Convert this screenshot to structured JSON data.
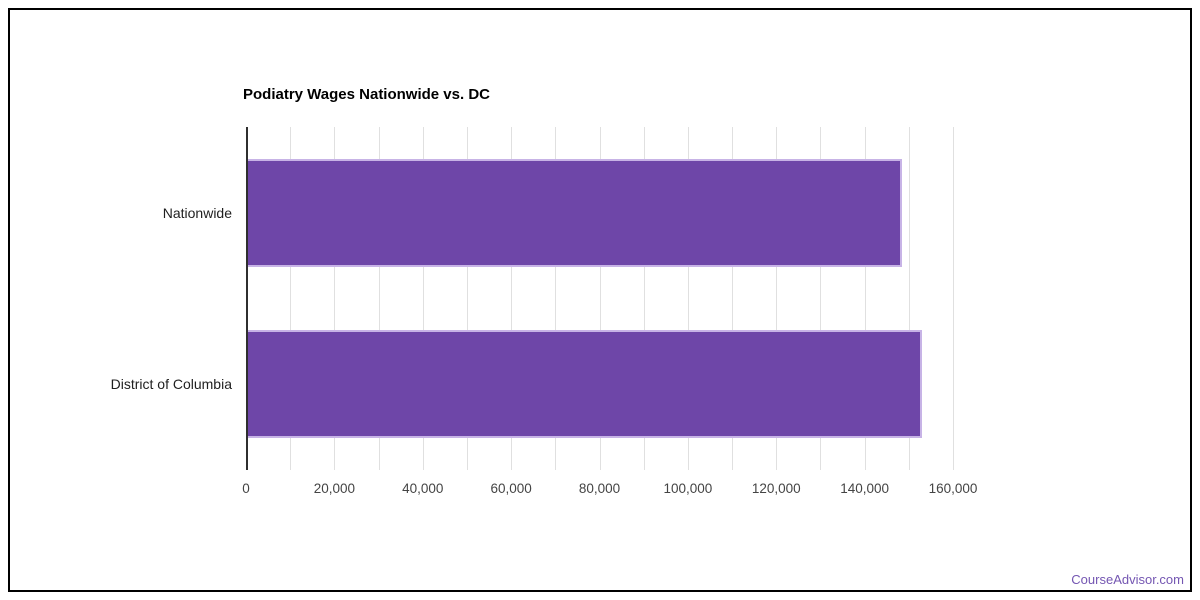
{
  "page": {
    "background_color": "#ffffff",
    "frame_border_color": "#000000"
  },
  "watermark": {
    "text": "CourseAdvisor.com",
    "color": "#7456b2"
  },
  "chart_data": {
    "type": "bar",
    "orientation": "horizontal",
    "title": "Podiatry Wages Nationwide vs. DC",
    "categories": [
      "Nationwide",
      "District of Columbia"
    ],
    "values": [
      148000,
      152500
    ],
    "xlabel": "",
    "ylabel": "",
    "xlim": [
      0,
      167000
    ],
    "x_ticks": [
      0,
      20000,
      40000,
      60000,
      80000,
      100000,
      120000,
      140000,
      160000
    ],
    "x_tick_labels": [
      "0",
      "20,000",
      "40,000",
      "60,000",
      "80,000",
      "100,000",
      "120,000",
      "140,000",
      "160,000"
    ],
    "minor_grid_interval": 10000,
    "grid": "on",
    "legend": "none",
    "colors": {
      "bar_fill": "#6e46a8",
      "bar_stroke": "#c7b3e6",
      "gridline": "#e0e0e0",
      "axis_line": "#2f2f2f",
      "tick_label": "#444444",
      "category_label": "#1f1f1f",
      "title": "#000000"
    }
  }
}
